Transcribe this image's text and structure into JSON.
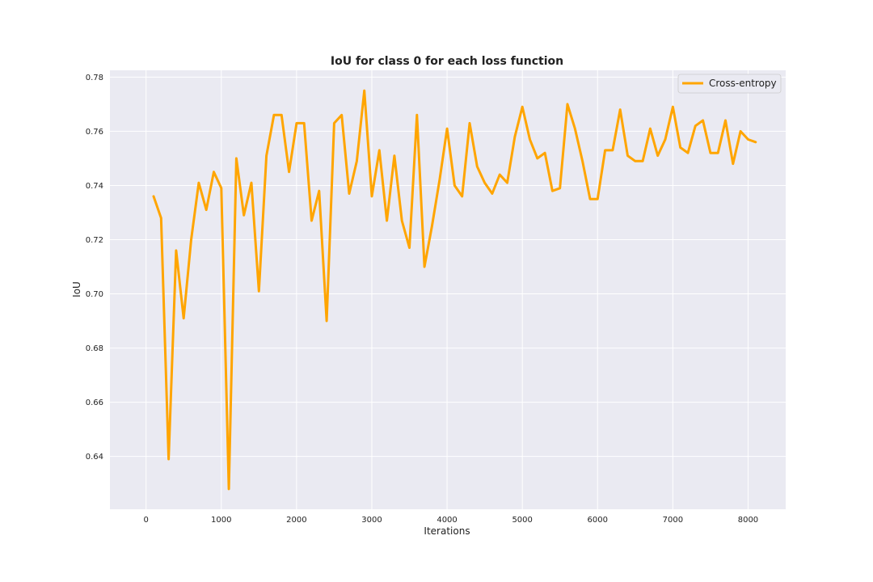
{
  "chart_data": {
    "type": "line",
    "title": "IoU for class 0 for each loss function",
    "xlabel": "Iterations",
    "ylabel": "IoU",
    "xlim": [
      -480,
      8500
    ],
    "ylim": [
      0.6205,
      0.7825
    ],
    "xticks": [
      0,
      1000,
      2000,
      3000,
      4000,
      5000,
      6000,
      7000,
      8000
    ],
    "yticks": [
      0.64,
      0.66,
      0.68,
      0.7,
      0.72,
      0.74,
      0.76,
      0.78
    ],
    "xtick_labels": [
      "0",
      "1000",
      "2000",
      "3000",
      "4000",
      "5000",
      "6000",
      "7000",
      "8000"
    ],
    "ytick_labels": [
      "0.64",
      "0.66",
      "0.68",
      "0.70",
      "0.72",
      "0.74",
      "0.76",
      "0.78"
    ],
    "grid": true,
    "legend_position": "top-right",
    "colors": {
      "plot_background": "#eaeaf2",
      "grid": "#ffffff",
      "series": "#ffa500"
    },
    "series": [
      {
        "name": "Cross-entropy",
        "x": [
          100,
          200,
          300,
          400,
          500,
          600,
          700,
          800,
          900,
          1000,
          1100,
          1200,
          1300,
          1400,
          1500,
          1600,
          1700,
          1800,
          1900,
          2000,
          2100,
          2200,
          2300,
          2400,
          2500,
          2600,
          2700,
          2800,
          2900,
          3000,
          3100,
          3200,
          3300,
          3400,
          3500,
          3600,
          3700,
          3800,
          3900,
          4000,
          4100,
          4200,
          4300,
          4400,
          4500,
          4600,
          4700,
          4800,
          4900,
          5000,
          5100,
          5200,
          5300,
          5400,
          5500,
          5600,
          5700,
          5800,
          5900,
          6000,
          6100,
          6200,
          6300,
          6400,
          6500,
          6600,
          6700,
          6800,
          6900,
          7000,
          7100,
          7200,
          7300,
          7400,
          7500,
          7600,
          7700,
          7800,
          7900,
          8000,
          8100
        ],
        "y": [
          0.736,
          0.728,
          0.639,
          0.716,
          0.691,
          0.72,
          0.741,
          0.731,
          0.745,
          0.739,
          0.628,
          0.75,
          0.729,
          0.741,
          0.701,
          0.751,
          0.766,
          0.766,
          0.745,
          0.763,
          0.763,
          0.727,
          0.738,
          0.69,
          0.763,
          0.766,
          0.737,
          0.749,
          0.775,
          0.736,
          0.753,
          0.727,
          0.751,
          0.727,
          0.717,
          0.766,
          0.71,
          0.725,
          0.742,
          0.761,
          0.74,
          0.736,
          0.763,
          0.747,
          0.741,
          0.737,
          0.744,
          0.741,
          0.758,
          0.769,
          0.757,
          0.75,
          0.752,
          0.738,
          0.739,
          0.77,
          0.761,
          0.749,
          0.735,
          0.735,
          0.753,
          0.753,
          0.768,
          0.751,
          0.749,
          0.749,
          0.761,
          0.751,
          0.757,
          0.769,
          0.754,
          0.752,
          0.762,
          0.764,
          0.752,
          0.752,
          0.764,
          0.748,
          0.76,
          0.757,
          0.756
        ]
      }
    ]
  }
}
